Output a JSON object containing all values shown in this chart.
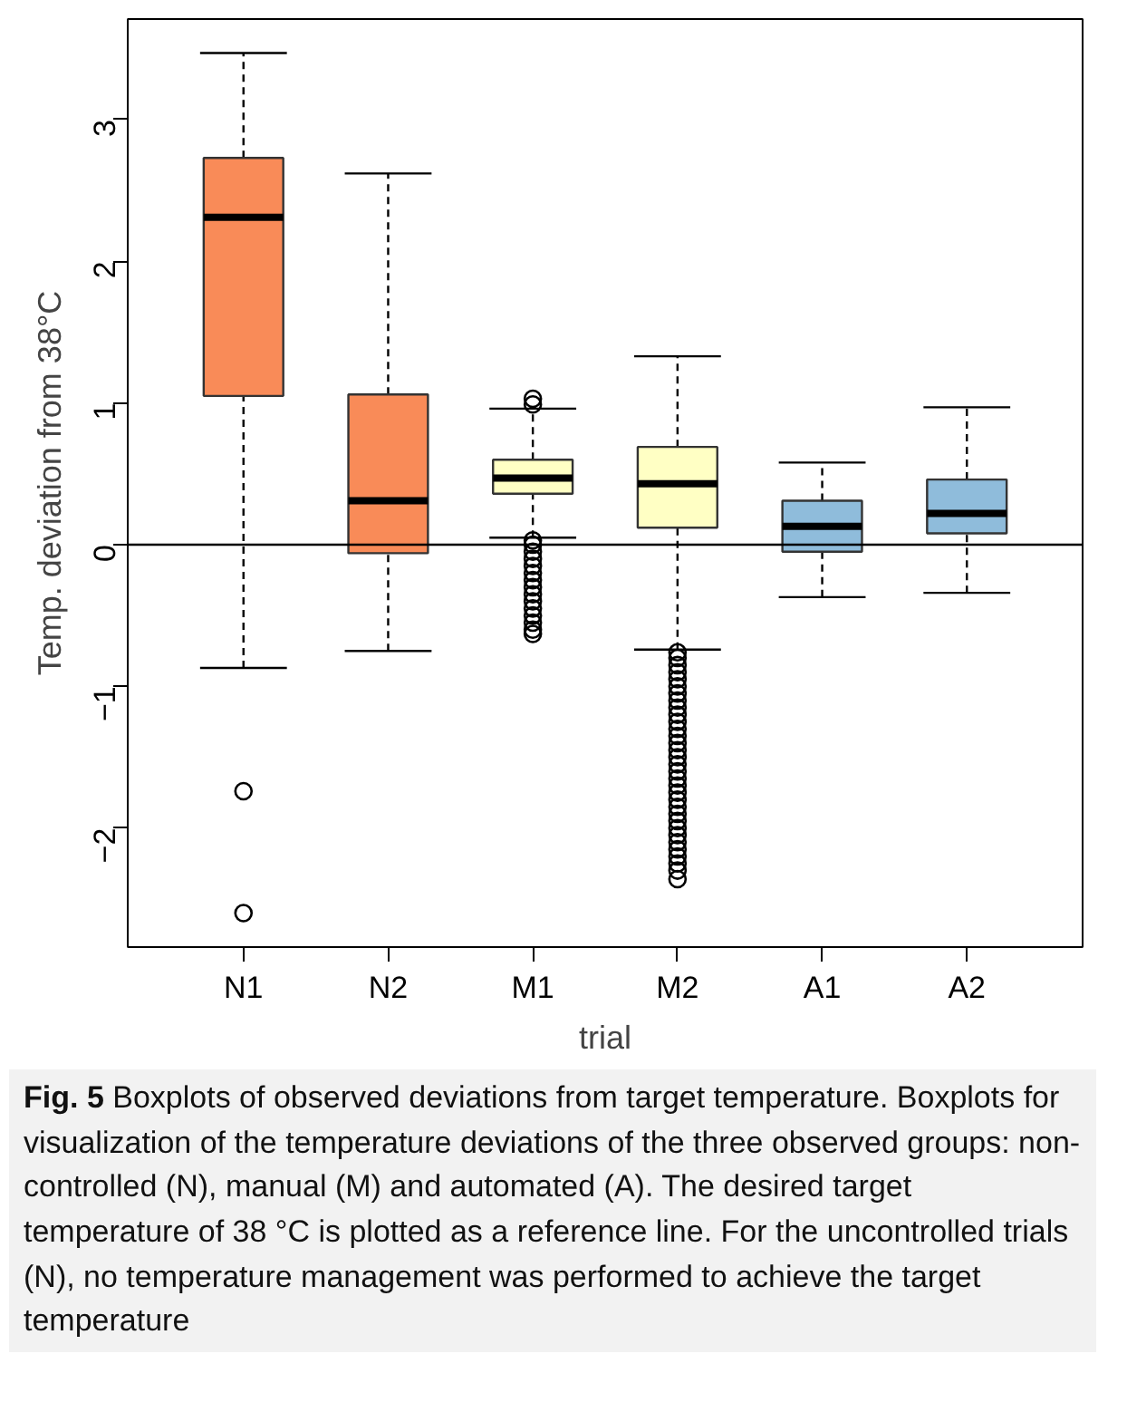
{
  "chart_data": {
    "type": "box",
    "xlabel": "trial",
    "ylabel": "Temp. deviation from 38°C",
    "categories": [
      "N1",
      "N2",
      "M1",
      "M2",
      "A1",
      "A2"
    ],
    "colors": [
      "#f98b58",
      "#f98b58",
      "#ffffc4",
      "#ffffc4",
      "#8fbcdb",
      "#8fbcdb"
    ],
    "boxes": [
      {
        "low": -0.87,
        "q1": 1.05,
        "median": 2.31,
        "q3": 2.73,
        "high": 3.47,
        "outliers": [
          -1.74,
          -2.6
        ]
      },
      {
        "low": -0.75,
        "q1": -0.06,
        "median": 0.31,
        "q3": 1.06,
        "high": 2.62
      },
      {
        "low": 0.05,
        "q1": 0.36,
        "median": 0.47,
        "q3": 0.6,
        "high": 0.96,
        "outliers": [
          0.99,
          1.03,
          0.03,
          0.0,
          -0.05,
          -0.1,
          -0.15,
          -0.2,
          -0.25,
          -0.3,
          -0.35,
          -0.4,
          -0.45,
          -0.5,
          -0.55,
          -0.6,
          -0.63
        ]
      },
      {
        "low": -0.74,
        "q1": 0.12,
        "median": 0.43,
        "q3": 0.69,
        "high": 1.33,
        "outliers": [
          -0.76,
          -0.8,
          -0.85,
          -0.9,
          -0.95,
          -1.0,
          -1.05,
          -1.1,
          -1.15,
          -1.2,
          -1.25,
          -1.3,
          -1.35,
          -1.4,
          -1.45,
          -1.5,
          -1.55,
          -1.6,
          -1.65,
          -1.7,
          -1.75,
          -1.8,
          -1.85,
          -1.9,
          -1.95,
          -2.0,
          -2.05,
          -2.1,
          -2.15,
          -2.2,
          -2.25,
          -2.3,
          -2.36
        ]
      },
      {
        "low": -0.37,
        "q1": -0.05,
        "median": 0.13,
        "q3": 0.31,
        "high": 0.58
      },
      {
        "low": -0.34,
        "q1": 0.08,
        "median": 0.22,
        "q3": 0.46,
        "high": 0.97
      }
    ],
    "ylim": [
      -2.84,
      3.71
    ],
    "yticks": [
      -2,
      -1,
      0,
      1,
      2,
      3
    ],
    "ref_lines": [
      {
        "axis": "y",
        "value": 0,
        "color": "#000000"
      }
    ],
    "grid": false,
    "annotations": [
      "Fig. 5",
      "Boxplots of observed deviations from target temperature. Boxplots for visualization of the temperature deviations of the three observed groups: non-controlled (N), manual (M) and automated (A). The desired target temperature of 38 °C is plotted as a reference line. For the uncontrolled trials (N), no temperature management was performed to achieve the target temperature"
    ]
  }
}
